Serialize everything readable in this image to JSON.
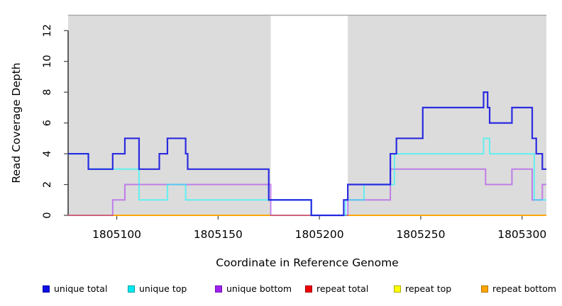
{
  "figure": {
    "x_axis_title": "Coordinate in Reference Genome",
    "y_axis_title": "Read Coverage Depth"
  },
  "colors": {
    "panel_background": "#DCDCDC",
    "gap_background": "#FFFFFF",
    "panel_top_border": "#A9A9A9",
    "axis": "#000000",
    "tick": "#444444"
  },
  "chart_data": {
    "type": "line",
    "subtype": "step-coverage",
    "title": "",
    "xlabel": "Coordinate in Reference Genome",
    "ylabel": "Read Coverage Depth",
    "xlim": [
      1805076,
      1805312
    ],
    "ylim": [
      0,
      13
    ],
    "grid": false,
    "legend_position": "bottom",
    "x_ticks": [
      "1805100",
      "1805150",
      "1805200",
      "1805250",
      "1805300"
    ],
    "x_tick_values": [
      1805100,
      1805150,
      1805200,
      1805250,
      1805300
    ],
    "y_ticks": [
      "0",
      "2",
      "4",
      "6",
      "8",
      "10",
      "12"
    ],
    "y_tick_values": [
      0,
      2,
      4,
      6,
      8,
      10,
      12
    ],
    "background_regions": [
      {
        "name": "covered-region-left",
        "start": 1805076,
        "end": 1805176,
        "fill": "#DCDCDC"
      },
      {
        "name": "uncovered-gap",
        "start": 1805176,
        "end": 1805214,
        "fill": "#FFFFFF"
      },
      {
        "name": "covered-region-right",
        "start": 1805214,
        "end": 1805312,
        "fill": "#DCDCDC"
      }
    ],
    "draw_order": [
      3,
      4,
      5,
      2,
      1,
      0
    ],
    "series": [
      {
        "name": "unique total",
        "key": "unique-total",
        "color": "#1B1BE0",
        "opacity": 0.92,
        "width": 2.2,
        "points": [
          [
            1805076,
            4
          ],
          [
            1805086,
            3
          ],
          [
            1805098,
            4
          ],
          [
            1805104,
            5
          ],
          [
            1805111,
            3
          ],
          [
            1805121,
            4
          ],
          [
            1805125,
            5
          ],
          [
            1805134,
            4
          ],
          [
            1805135,
            3
          ],
          [
            1805175,
            1
          ],
          [
            1805196,
            0
          ],
          [
            1805212,
            1
          ],
          [
            1805214,
            2
          ],
          [
            1805235,
            4
          ],
          [
            1805238,
            5
          ],
          [
            1805251,
            7
          ],
          [
            1805281,
            8
          ],
          [
            1805283,
            7
          ],
          [
            1805284,
            6
          ],
          [
            1805295,
            7
          ],
          [
            1805305,
            5
          ],
          [
            1805307,
            4
          ],
          [
            1805310,
            3
          ]
        ],
        "end_x": 1805312
      },
      {
        "name": "unique top",
        "key": "unique-top",
        "color": "#00FFFF",
        "opacity": 0.55,
        "width": 2,
        "points": [
          [
            1805076,
            4
          ],
          [
            1805086,
            3
          ],
          [
            1805111,
            1
          ],
          [
            1805125,
            2
          ],
          [
            1805134,
            1
          ],
          [
            1805196,
            0
          ],
          [
            1805213,
            1
          ],
          [
            1805222,
            2
          ],
          [
            1805237,
            4
          ],
          [
            1805281,
            5
          ],
          [
            1805284,
            4
          ],
          [
            1805306,
            1
          ]
        ],
        "end_x": 1805312
      },
      {
        "name": "unique bottom",
        "key": "unique-bottom",
        "color": "#A020F0",
        "opacity": 0.5,
        "width": 2,
        "points": [
          [
            1805076,
            0
          ],
          [
            1805098,
            1
          ],
          [
            1805104,
            2
          ],
          [
            1805176,
            0
          ],
          [
            1805214,
            1
          ],
          [
            1805235,
            3
          ],
          [
            1805282,
            2
          ],
          [
            1805295,
            3
          ],
          [
            1805305,
            1
          ],
          [
            1805310,
            2
          ]
        ],
        "end_x": 1805312
      },
      {
        "name": "repeat total",
        "key": "repeat-total",
        "color": "#E00000",
        "opacity": 0.85,
        "width": 1.6,
        "points": [
          [
            1805076,
            0
          ]
        ],
        "end_x": 1805312
      },
      {
        "name": "repeat top",
        "key": "repeat-top",
        "color": "#FFFF00",
        "opacity": 0.9,
        "width": 1.6,
        "points": [
          [
            1805076,
            0
          ]
        ],
        "end_x": 1805312
      },
      {
        "name": "repeat bottom",
        "key": "repeat-bottom",
        "color": "#FFA500",
        "opacity": 1,
        "width": 1.8,
        "points": [
          [
            1805076,
            0
          ]
        ],
        "end_x": 1805312
      }
    ]
  },
  "legend": {
    "items": [
      {
        "label": "unique total",
        "key": "unique-total",
        "color": "#0F0FE6",
        "border": "#0000A6"
      },
      {
        "label": "unique top",
        "key": "unique-top",
        "color": "#00E8F0",
        "border": "#00A3A8"
      },
      {
        "label": "unique bottom",
        "key": "unique-bottom",
        "color": "#A020F0",
        "border": "#7114AE"
      },
      {
        "label": "repeat total",
        "key": "repeat-total",
        "color": "#EE0000",
        "border": "#A00000"
      },
      {
        "label": "repeat top",
        "key": "repeat-top",
        "color": "#FFFF00",
        "border": "#ABAB00"
      },
      {
        "label": "repeat bottom",
        "key": "repeat-bottom",
        "color": "#FFA500",
        "border": "#B87400"
      }
    ]
  }
}
